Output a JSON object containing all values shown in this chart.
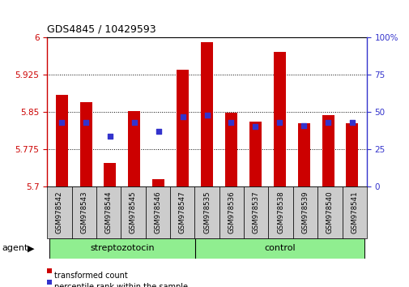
{
  "title": "GDS4845 / 10429593",
  "samples": [
    "GSM978542",
    "GSM978543",
    "GSM978544",
    "GSM978545",
    "GSM978546",
    "GSM978547",
    "GSM978535",
    "GSM978536",
    "GSM978537",
    "GSM978538",
    "GSM978539",
    "GSM978540",
    "GSM978541"
  ],
  "groups": [
    "streptozotocin",
    "streptozotocin",
    "streptozotocin",
    "streptozotocin",
    "streptozotocin",
    "streptozotocin",
    "control",
    "control",
    "control",
    "control",
    "control",
    "control",
    "control"
  ],
  "transformed_count": [
    5.885,
    5.87,
    5.748,
    5.852,
    5.715,
    5.935,
    5.99,
    5.848,
    5.83,
    5.97,
    5.828,
    5.843,
    5.828
  ],
  "percentile_rank": [
    43,
    43,
    34,
    43,
    37,
    47,
    48,
    43,
    40,
    43,
    41,
    43,
    43
  ],
  "ylim_left": [
    5.7,
    6.0
  ],
  "ylim_right": [
    0,
    100
  ],
  "yticks_left": [
    5.7,
    5.775,
    5.85,
    5.925,
    6.0
  ],
  "yticks_left_labels": [
    "5.7",
    "5.775",
    "5.85",
    "5.925",
    "6"
  ],
  "yticks_right": [
    0,
    25,
    50,
    75,
    100
  ],
  "yticks_right_labels": [
    "0",
    "25",
    "50",
    "75",
    "100%"
  ],
  "bar_color": "#cc0000",
  "dot_color": "#3333cc",
  "bar_width": 0.5,
  "green_color": "#90ee90",
  "agent_label": "agent",
  "legend_items": [
    "transformed count",
    "percentile rank within the sample"
  ],
  "axis_left_color": "#cc0000",
  "axis_right_color": "#3333cc",
  "tick_bg_color": "#cccccc",
  "group_divider": 5.5
}
